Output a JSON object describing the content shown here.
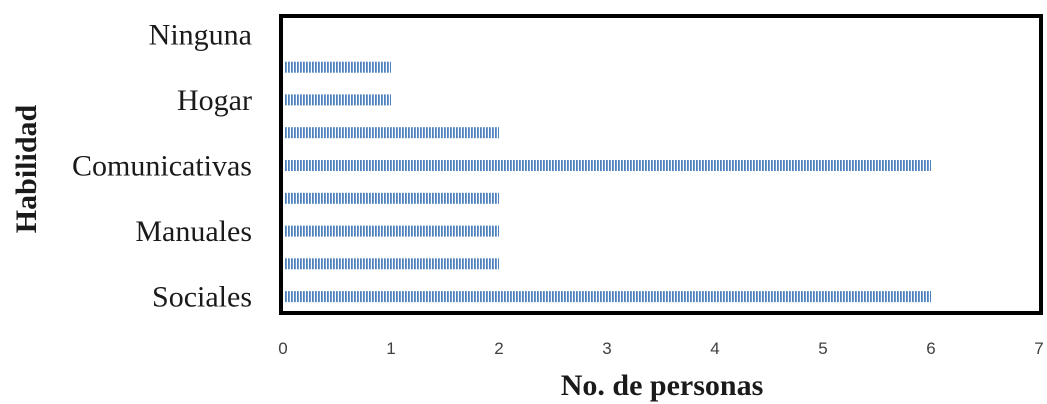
{
  "chart_data": {
    "type": "bar",
    "orientation": "horizontal",
    "categories": [
      "Sociales",
      "",
      "Manuales",
      "",
      "Comunicativas",
      "",
      "Hogar",
      "",
      "Ninguna"
    ],
    "values": [
      6,
      2,
      2,
      2,
      6,
      2,
      1,
      1,
      0
    ],
    "xlabel": "No. de personas",
    "ylabel": "Habilidad",
    "xlim": [
      0,
      7
    ],
    "xticks": [
      "0",
      "1",
      "2",
      "3",
      "4",
      "5",
      "6",
      "7"
    ],
    "grid": false,
    "legend": "none",
    "bar_color": "#4f81bd",
    "bar_pattern": "vertical-stripes"
  }
}
